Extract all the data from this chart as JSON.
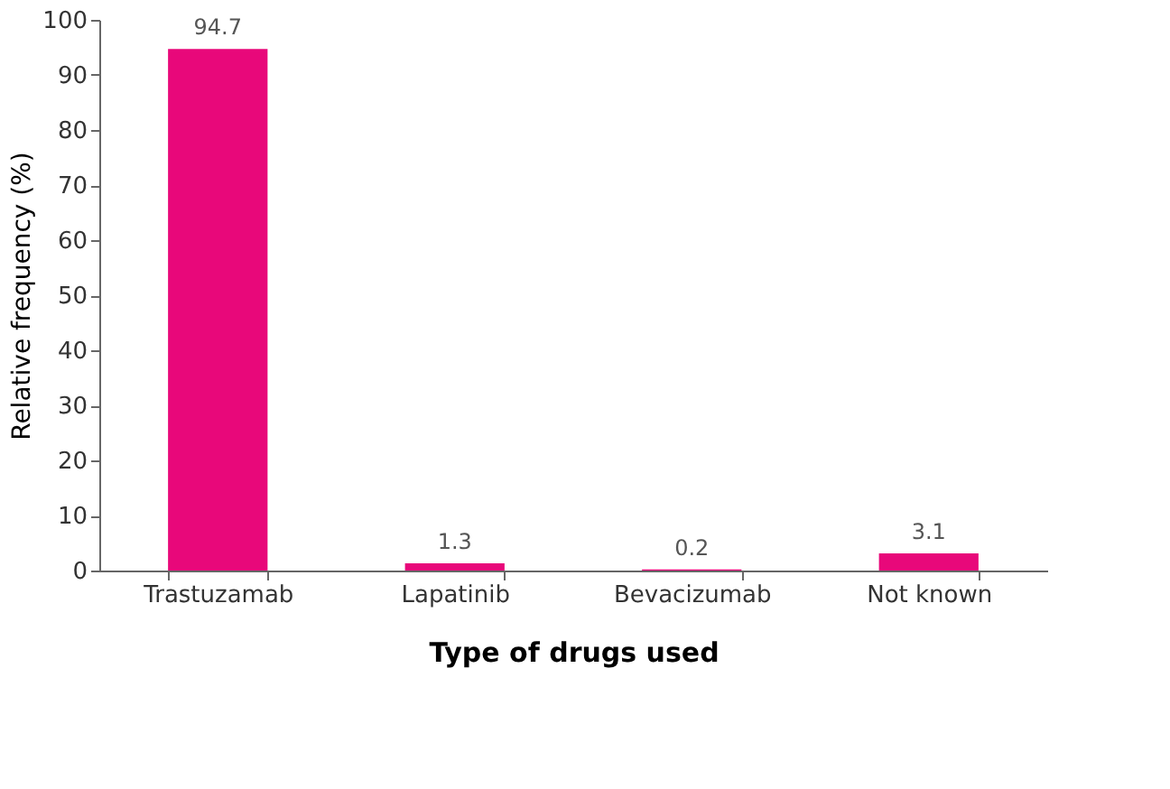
{
  "chart_data": {
    "type": "bar",
    "xlabel": "Type of drugs used",
    "ylabel": "Relative frequency (%)",
    "categories": [
      "Trastuzamab",
      "Lapatinib",
      "Bevacizumab",
      "Not known"
    ],
    "values": [
      94.7,
      1.3,
      0.2,
      3.1
    ],
    "color": "#e8087a",
    "data_labels": true,
    "ylim": [
      0,
      100
    ],
    "yticks": [
      0,
      10,
      20,
      30,
      40,
      50,
      60,
      70,
      80,
      90,
      100
    ],
    "grid": false
  }
}
